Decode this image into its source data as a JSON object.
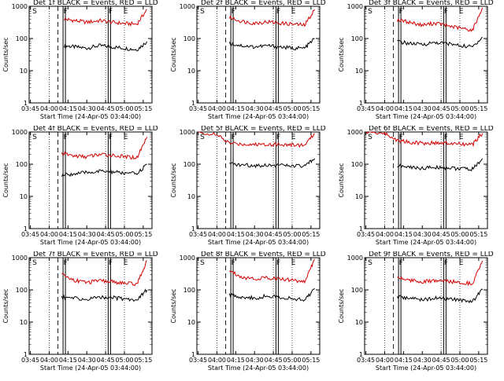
{
  "colors": {
    "events": "#000000",
    "lld": "#d40000",
    "background": "#ffffff"
  },
  "x_tick_labels": [
    "03:45",
    "04:00",
    "04:15",
    "04:30",
    "04:45",
    "05:00",
    "05:15"
  ],
  "x_axis_label": "Start Time (24-Apr-05 03:44:00)",
  "y_axis_label": "Counts/sec",
  "y_tick_labels": [
    "1",
    "10",
    "100",
    "1000"
  ],
  "markers": {
    "s": "S",
    "f1": "F",
    "f2": "F",
    "e": "E"
  },
  "chart_data": [
    {
      "type": "line",
      "title": "Det 1f BLACK = Events, RED = LLD",
      "xlabel": "Start Time (24-Apr-05 03:44:00)",
      "ylabel": "Counts/sec",
      "ylim": [
        1,
        1000
      ],
      "ylog": true,
      "x": [
        "04:12",
        "04:20",
        "04:30",
        "04:40",
        "04:50",
        "05:00",
        "05:10",
        "05:18"
      ],
      "series": [
        {
          "name": "BLACK = Events",
          "values": [
            60,
            55,
            50,
            60,
            55,
            50,
            45,
            80
          ]
        },
        {
          "name": "RED = LLD",
          "values": [
            400,
            360,
            320,
            360,
            320,
            290,
            280,
            800
          ]
        }
      ],
      "markers": {
        "S": "03:46",
        "F": [
          "04:12",
          "04:48"
        ],
        "E": "04:58"
      }
    },
    {
      "type": "line",
      "title": "Det 2f BLACK = Events, RED = LLD",
      "xlabel": "Start Time (24-Apr-05 03:44:00)",
      "ylabel": "Counts/sec",
      "ylim": [
        1,
        1000
      ],
      "ylog": true,
      "x": [
        "04:10",
        "04:20",
        "04:30",
        "04:40",
        "04:50",
        "05:00",
        "05:10",
        "05:18"
      ],
      "series": [
        {
          "name": "BLACK = Events",
          "values": [
            70,
            60,
            55,
            60,
            55,
            50,
            50,
            100
          ]
        },
        {
          "name": "RED = LLD",
          "values": [
            450,
            340,
            300,
            330,
            300,
            280,
            260,
            800
          ]
        }
      ],
      "markers": {
        "S": "03:46",
        "F": [
          "04:12",
          "04:48"
        ],
        "E": "04:58"
      }
    },
    {
      "type": "line",
      "title": "Det 3f BLACK = Events, RED = LLD",
      "xlabel": "Start Time (24-Apr-05 03:44:00)",
      "ylabel": "Counts/sec",
      "ylim": [
        1,
        1000
      ],
      "ylog": true,
      "x": [
        "04:10",
        "04:20",
        "04:30",
        "04:40",
        "04:50",
        "05:00",
        "05:10",
        "05:18"
      ],
      "series": [
        {
          "name": "BLACK = Events",
          "values": [
            80,
            70,
            65,
            75,
            70,
            60,
            55,
            110
          ]
        },
        {
          "name": "RED = LLD",
          "values": [
            380,
            320,
            260,
            300,
            250,
            210,
            180,
            900
          ]
        }
      ],
      "markers": {
        "S": "03:46",
        "F": [
          "04:12",
          "04:48"
        ],
        "E": "04:58"
      }
    },
    {
      "type": "line",
      "title": "Det 4f BLACK = Events, RED = LLD",
      "xlabel": "Start Time (24-Apr-05 03:44:00)",
      "ylabel": "Counts/sec",
      "ylim": [
        1,
        1000
      ],
      "ylog": true,
      "x": [
        "04:10",
        "04:20",
        "04:30",
        "04:40",
        "04:50",
        "05:00",
        "05:10",
        "05:18"
      ],
      "series": [
        {
          "name": "BLACK = Events",
          "values": [
            45,
            50,
            55,
            60,
            58,
            52,
            50,
            100
          ]
        },
        {
          "name": "RED = LLD",
          "values": [
            220,
            180,
            170,
            200,
            190,
            170,
            160,
            700
          ]
        }
      ],
      "markers": {
        "S": "03:46",
        "F": [
          "04:12",
          "04:48"
        ],
        "E": "04:58"
      }
    },
    {
      "type": "line",
      "title": "Det 5f BLACK = Events, RED = LLD",
      "xlabel": "Start Time (24-Apr-05 03:44:00)",
      "ylabel": "Counts/sec",
      "ylim": [
        1,
        1000
      ],
      "ylog": true,
      "x": [
        "03:45",
        "04:00",
        "04:10",
        "04:20",
        "04:30",
        "04:40",
        "04:50",
        "05:00",
        "05:10",
        "05:18"
      ],
      "series": [
        {
          "name": "BLACK = Events",
          "values": [
            null,
            null,
            100,
            95,
            90,
            95,
            92,
            88,
            85,
            150
          ]
        },
        {
          "name": "RED = LLD",
          "values": [
            1000,
            800,
            450,
            420,
            410,
            420,
            410,
            400,
            390,
            900
          ]
        }
      ],
      "markers": {
        "S": "03:46",
        "F": [
          "04:12",
          "04:48"
        ],
        "E": "04:58"
      }
    },
    {
      "type": "line",
      "title": "Det 6f BLACK = Events, RED = LLD",
      "xlabel": "Start Time (24-Apr-05 03:44:00)",
      "ylabel": "Counts/sec",
      "ylim": [
        1,
        1000
      ],
      "ylog": true,
      "x": [
        "03:45",
        "04:00",
        "04:10",
        "04:20",
        "04:30",
        "04:40",
        "04:50",
        "05:00",
        "05:10",
        "05:18"
      ],
      "series": [
        {
          "name": "BLACK = Events",
          "values": [
            null,
            null,
            90,
            80,
            75,
            80,
            78,
            72,
            70,
            150
          ]
        },
        {
          "name": "RED = LLD",
          "values": [
            1000,
            900,
            550,
            480,
            450,
            460,
            440,
            420,
            400,
            900
          ]
        }
      ],
      "markers": {
        "S": "03:46",
        "F": [
          "04:12",
          "04:48"
        ],
        "E": "04:58"
      }
    },
    {
      "type": "line",
      "title": "Det 7f BLACK = Events, RED = LLD",
      "xlabel": "Start Time (24-Apr-05 03:44:00)",
      "ylabel": "Counts/sec",
      "ylim": [
        1,
        1000
      ],
      "ylog": true,
      "x": [
        "04:10",
        "04:20",
        "04:30",
        "04:40",
        "04:50",
        "05:00",
        "05:10",
        "05:18"
      ],
      "series": [
        {
          "name": "BLACK = Events",
          "values": [
            60,
            55,
            50,
            60,
            58,
            52,
            50,
            100
          ]
        },
        {
          "name": "RED = LLD",
          "values": [
            300,
            200,
            170,
            190,
            180,
            160,
            150,
            800
          ]
        }
      ],
      "markers": {
        "S": "03:46",
        "F": [
          "04:12",
          "04:48"
        ],
        "E": "04:58"
      }
    },
    {
      "type": "line",
      "title": "Det 8f BLACK = Events, RED = LLD",
      "xlabel": "Start Time (24-Apr-05 03:44:00)",
      "ylabel": "Counts/sec",
      "ylim": [
        1,
        1000
      ],
      "ylog": true,
      "x": [
        "04:10",
        "04:20",
        "04:30",
        "04:40",
        "04:50",
        "05:00",
        "05:10",
        "05:18"
      ],
      "series": [
        {
          "name": "BLACK = Events",
          "values": [
            70,
            60,
            55,
            65,
            60,
            52,
            48,
            110
          ]
        },
        {
          "name": "RED = LLD",
          "values": [
            400,
            250,
            220,
            240,
            220,
            200,
            180,
            900
          ]
        }
      ],
      "markers": {
        "S": "03:46",
        "F": [
          "04:12",
          "04:48"
        ],
        "E": "04:58"
      }
    },
    {
      "type": "line",
      "title": "Det 9f BLACK = Events, RED = LLD",
      "xlabel": "Start Time (24-Apr-05 03:44:00)",
      "ylabel": "Counts/sec",
      "ylim": [
        1,
        1000
      ],
      "ylog": true,
      "x": [
        "04:10",
        "04:20",
        "04:30",
        "04:40",
        "04:50",
        "05:00",
        "05:10",
        "05:18"
      ],
      "series": [
        {
          "name": "BLACK = Events",
          "values": [
            60,
            55,
            50,
            55,
            52,
            48,
            45,
            100
          ]
        },
        {
          "name": "RED = LLD",
          "values": [
            250,
            200,
            180,
            190,
            185,
            170,
            160,
            800
          ]
        }
      ],
      "markers": {
        "S": "03:46",
        "F": [
          "04:12",
          "04:48"
        ],
        "E": "04:58"
      }
    }
  ]
}
